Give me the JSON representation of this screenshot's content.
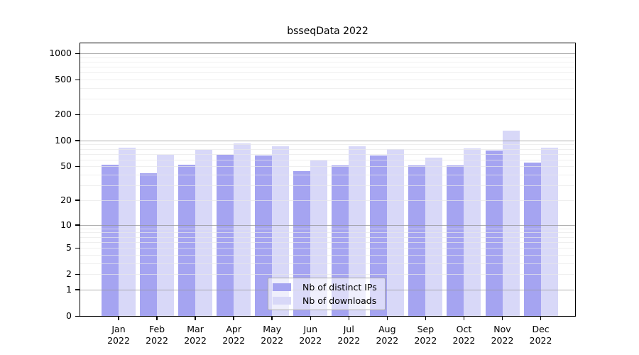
{
  "title": "bsseqData 2022",
  "colors": {
    "ips_bar": "#a5a4f1",
    "downloads_bar": "#d8d8f8",
    "grid_minor": "#e8e8e8",
    "grid_major": "#b0b0b0",
    "axis_border": "#000000",
    "legend_border": "#a8a8a8",
    "background": "#ffffff"
  },
  "legend": {
    "items": [
      {
        "label": "Nb of distinct IPs",
        "series": "ips"
      },
      {
        "label": "Nb of downloads",
        "series": "downloads"
      }
    ]
  },
  "chart_data": {
    "type": "bar",
    "title": "bsseqData 2022",
    "categories": [
      "Jan 2022",
      "Feb 2022",
      "Mar 2022",
      "Apr 2022",
      "May 2022",
      "Jun 2022",
      "Jul 2022",
      "Aug 2022",
      "Sep 2022",
      "Oct 2022",
      "Nov 2022",
      "Dec 2022"
    ],
    "series": [
      {
        "name": "Nb of distinct IPs",
        "color_key": "ips_bar",
        "values": [
          52,
          42,
          52,
          68,
          67,
          44,
          51,
          67,
          51,
          51,
          76,
          55
        ]
      },
      {
        "name": "Nb of downloads",
        "color_key": "downloads_bar",
        "values": [
          82,
          68,
          78,
          92,
          86,
          59,
          85,
          80,
          63,
          81,
          130,
          82
        ]
      }
    ],
    "xlabel": "",
    "ylabel": "",
    "y_scale": "log10(value+1)",
    "y_ticks": [
      0,
      1,
      2,
      5,
      10,
      20,
      50,
      100,
      200,
      500,
      1000
    ],
    "y_minor_gridlines": [
      2,
      3,
      4,
      5,
      6,
      7,
      8,
      9,
      20,
      30,
      40,
      50,
      60,
      70,
      80,
      90,
      200,
      300,
      400,
      500,
      600,
      700,
      800,
      900
    ],
    "y_major_gridlines": [
      1,
      10,
      100,
      1000
    ],
    "ylim": [
      0,
      1300
    ],
    "grid": "horizontal",
    "legend_position": "inside-bottom-center"
  }
}
